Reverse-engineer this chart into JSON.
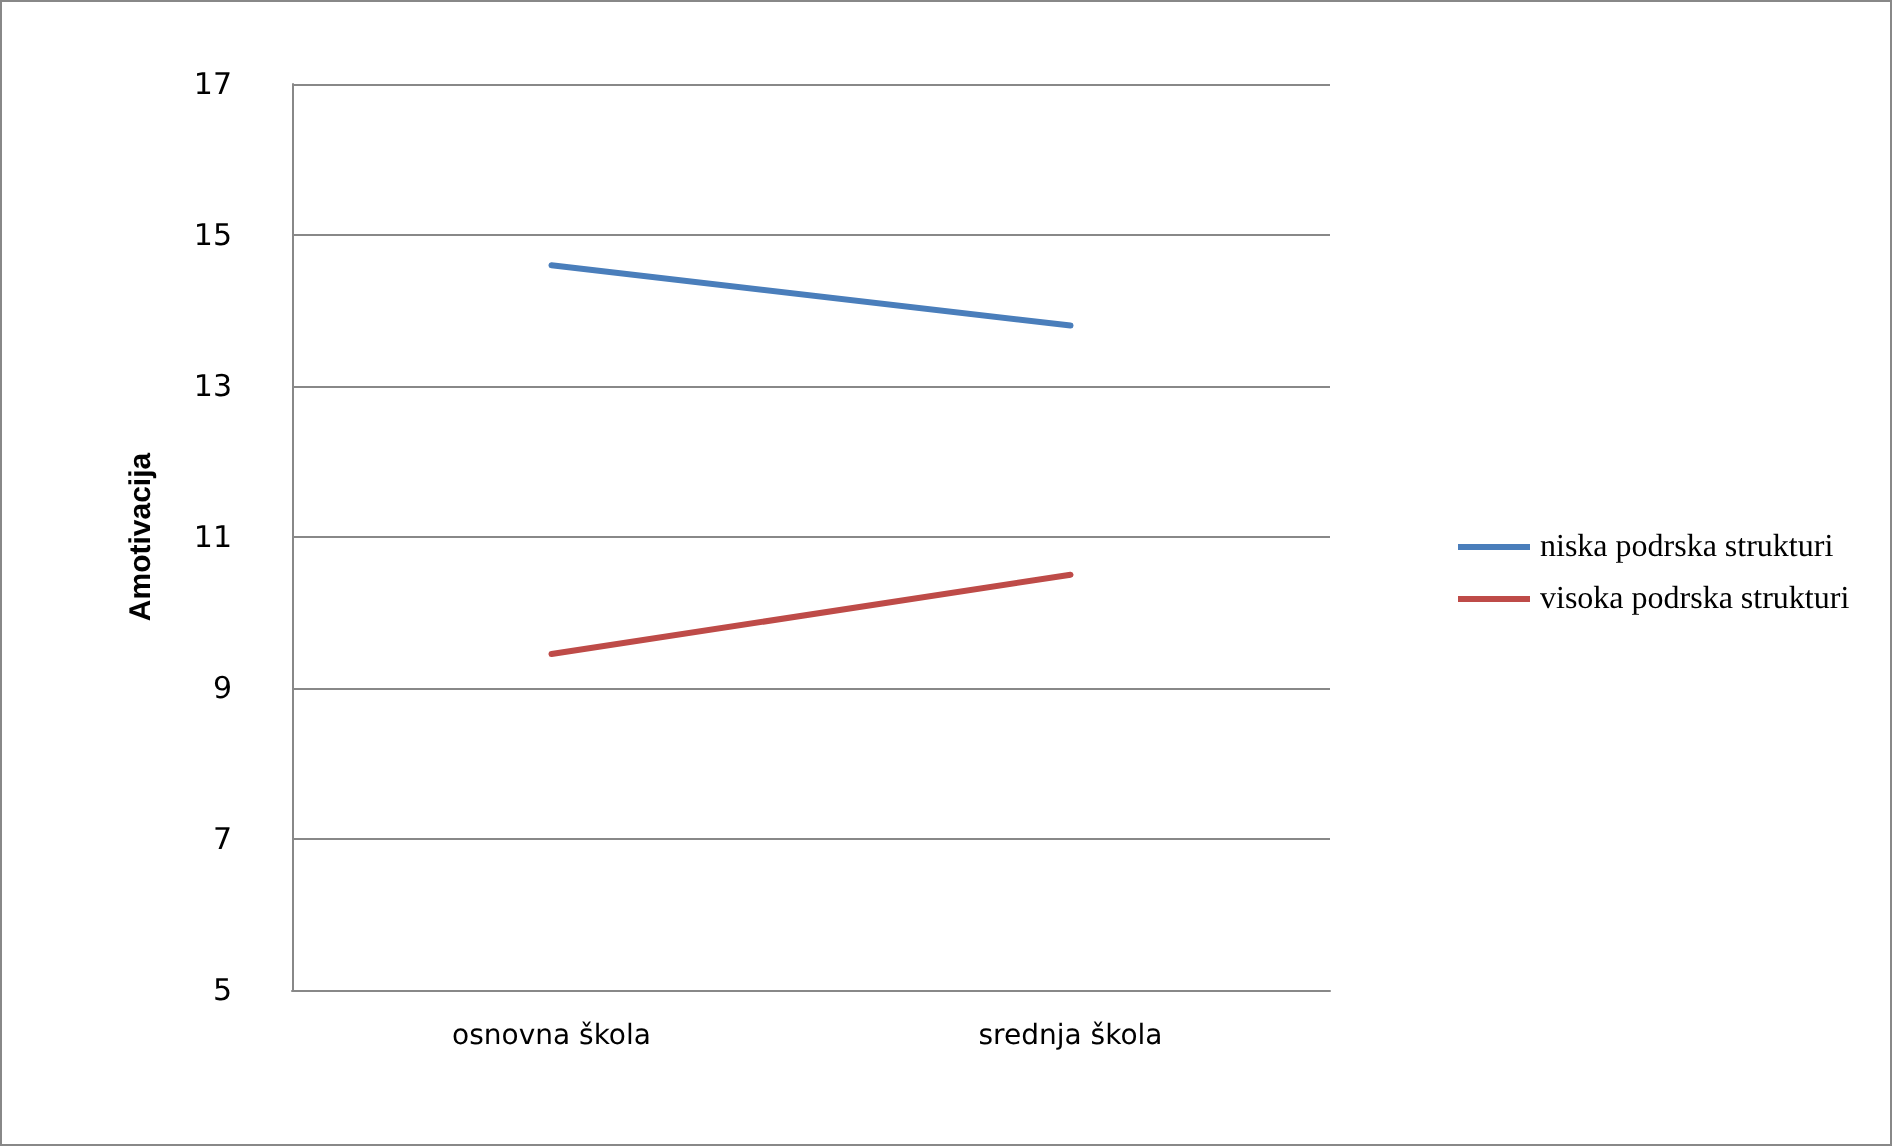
{
  "chart_data": {
    "type": "line",
    "ylabel": "Amotivacija",
    "categories": [
      "osnovna škola",
      "srednja škola"
    ],
    "series": [
      {
        "name": "niska podrska strukturi",
        "color": "#4a7ebb",
        "values": [
          14.6,
          13.8
        ]
      },
      {
        "name": "visoka podrska strukturi",
        "color": "#be4b48",
        "values": [
          9.45,
          10.5
        ]
      }
    ],
    "ylim": [
      5,
      17
    ],
    "yticks": [
      5,
      7,
      9,
      11,
      13,
      15,
      17
    ],
    "grid": "y",
    "legend": "right",
    "marker": "none",
    "line_style": "solid"
  }
}
